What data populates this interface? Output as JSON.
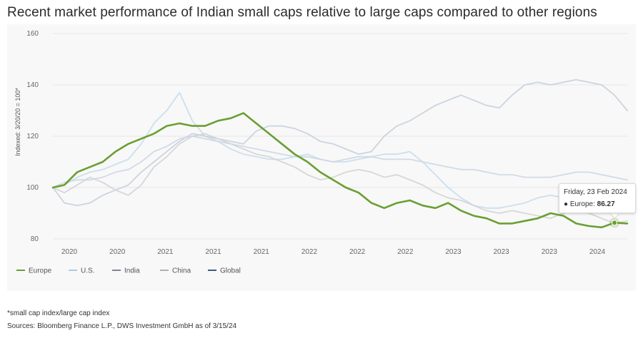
{
  "title": "Recent market performance of Indian small caps relative to large caps compared to other regions",
  "footnotes": [
    "*small cap index/large cap index",
    "Sources: Bloomberg Finance L.P., DWS Investment GmbH as of 3/15/24"
  ],
  "tooltip": {
    "date": "Friday, 23 Feb 2024",
    "series": "Europe",
    "value": "86.27",
    "bullet": "●"
  },
  "colors": {
    "europe": "#6a9f32",
    "us": "#c7dcec",
    "india": "#c6cfdb",
    "china": "#d3d3d3",
    "global": "#ccd6e6",
    "grid": "#e6e6e6",
    "axis_text": "#666666"
  },
  "chart_data": {
    "type": "line",
    "title": "Recent market performance of Indian small caps relative to large caps compared to other regions",
    "ylabel": "Indexed: 3/20/20 = 100*",
    "xlabel": "",
    "ylim": [
      80,
      160
    ],
    "yticks": [
      80,
      100,
      120,
      140,
      160
    ],
    "xlim": [
      2020.21,
      2024.7
    ],
    "xticks": [
      {
        "x": 2020.0,
        "label": "2020"
      },
      {
        "x": 2020.25,
        "label": "2020"
      },
      {
        "x": 2020.5,
        "label": "2021"
      },
      {
        "x": 2020.75,
        "label": "2021"
      },
      {
        "x": 2021.0,
        "label": "2021"
      },
      {
        "x": 2021.25,
        "label": "2022"
      },
      {
        "x": 2021.5,
        "label": "2022"
      },
      {
        "x": 2021.75,
        "label": "2022"
      },
      {
        "x": 2022.0,
        "label": "2023"
      },
      {
        "x": 2022.25,
        "label": "2023"
      },
      {
        "x": 2022.5,
        "label": "2023"
      },
      {
        "x": 2022.75,
        "label": "2024"
      }
    ],
    "legend_position": "bottom-left",
    "series": [
      {
        "name": "Europe",
        "key": "europe",
        "highlight": true,
        "x": [
          2020.21,
          2020.3,
          2020.4,
          2020.5,
          2020.6,
          2020.7,
          2020.8,
          2020.9,
          2021.0,
          2021.1,
          2021.2,
          2021.3,
          2021.4,
          2021.5,
          2021.6,
          2021.7,
          2021.8,
          2021.9,
          2022.0,
          2022.1,
          2022.2,
          2022.3,
          2022.4,
          2022.5,
          2022.6,
          2022.7,
          2022.8,
          2022.9,
          2023.0,
          2023.1,
          2023.2,
          2023.3,
          2023.4,
          2023.5,
          2023.6,
          2023.7,
          2023.8,
          2023.9,
          2024.0,
          2024.1,
          2024.2,
          2024.3,
          2024.4,
          2024.5,
          2024.6,
          2024.7
        ],
        "values": [
          100,
          101,
          106,
          108,
          110,
          114,
          117,
          119,
          121,
          124,
          125,
          124,
          124,
          126,
          127,
          129,
          125,
          121,
          117,
          113,
          110,
          106,
          103,
          100,
          98,
          94,
          92,
          94,
          95,
          93,
          92,
          94,
          91,
          89,
          88,
          86,
          86,
          87,
          88,
          90,
          89,
          86,
          85,
          84.5,
          86.3,
          86
        ]
      },
      {
        "name": "U.S.",
        "key": "us",
        "highlight": false,
        "x": [
          2020.21,
          2020.3,
          2020.4,
          2020.5,
          2020.6,
          2020.7,
          2020.8,
          2020.9,
          2021.0,
          2021.1,
          2021.2,
          2021.3,
          2021.4,
          2021.5,
          2021.6,
          2021.7,
          2021.8,
          2021.9,
          2022.0,
          2022.1,
          2022.2,
          2022.3,
          2022.4,
          2022.5,
          2022.6,
          2022.7,
          2022.8,
          2022.9,
          2023.0,
          2023.1,
          2023.2,
          2023.3,
          2023.4,
          2023.5,
          2023.6,
          2023.7,
          2023.8,
          2023.9,
          2024.0,
          2024.1,
          2024.2,
          2024.3,
          2024.4,
          2024.5,
          2024.6,
          2024.7
        ],
        "values": [
          100,
          101,
          104,
          106,
          107,
          109,
          111,
          117,
          125,
          130,
          137,
          126,
          120,
          118,
          115,
          113,
          112,
          111,
          111,
          112,
          113,
          111,
          110,
          110,
          111,
          112,
          113,
          113,
          114,
          110,
          105,
          100,
          96,
          93,
          92,
          92,
          93,
          94,
          96,
          97,
          96,
          95,
          94,
          92,
          91,
          91
        ]
      },
      {
        "name": "India",
        "key": "india",
        "highlight": false,
        "x": [
          2020.21,
          2020.3,
          2020.4,
          2020.5,
          2020.6,
          2020.7,
          2020.8,
          2020.9,
          2021.0,
          2021.1,
          2021.2,
          2021.3,
          2021.4,
          2021.5,
          2021.6,
          2021.7,
          2021.8,
          2021.9,
          2022.0,
          2022.1,
          2022.2,
          2022.3,
          2022.4,
          2022.5,
          2022.6,
          2022.7,
          2022.8,
          2022.9,
          2023.0,
          2023.1,
          2023.2,
          2023.3,
          2023.4,
          2023.5,
          2023.6,
          2023.7,
          2023.8,
          2023.9,
          2024.0,
          2024.1,
          2024.2,
          2024.3,
          2024.4,
          2024.5,
          2024.6,
          2024.7
        ],
        "values": [
          100,
          94,
          93,
          94,
          97,
          99,
          101,
          106,
          110,
          114,
          118,
          121,
          120,
          119,
          118,
          117,
          122,
          124,
          124,
          123,
          121,
          118,
          117,
          115,
          113,
          114,
          120,
          124,
          126,
          129,
          132,
          134,
          136,
          134,
          132,
          131,
          136,
          140,
          141,
          140,
          141,
          142,
          141,
          140,
          136,
          130
        ]
      },
      {
        "name": "China",
        "key": "china",
        "highlight": false,
        "x": [
          2020.21,
          2020.3,
          2020.4,
          2020.5,
          2020.6,
          2020.7,
          2020.8,
          2020.9,
          2021.0,
          2021.1,
          2021.2,
          2021.3,
          2021.4,
          2021.5,
          2021.6,
          2021.7,
          2021.8,
          2021.9,
          2022.0,
          2022.1,
          2022.2,
          2022.3,
          2022.4,
          2022.5,
          2022.6,
          2022.7,
          2022.8,
          2022.9,
          2023.0,
          2023.1,
          2023.2,
          2023.3,
          2023.4,
          2023.5,
          2023.6,
          2023.7,
          2023.8,
          2023.9,
          2024.0,
          2024.1,
          2024.2,
          2024.3,
          2024.4,
          2024.5,
          2024.6,
          2024.7
        ],
        "values": [
          100,
          98,
          101,
          104,
          102,
          99,
          97,
          101,
          108,
          112,
          117,
          120,
          121,
          119,
          117,
          115,
          113,
          112,
          110,
          108,
          105,
          103,
          104,
          106,
          107,
          106,
          104,
          105,
          103,
          101,
          98,
          96,
          95,
          93,
          91,
          90,
          91,
          90,
          89,
          88,
          90,
          91,
          90,
          88,
          86,
          87
        ]
      },
      {
        "name": "Global",
        "key": "global",
        "highlight": false,
        "x": [
          2020.21,
          2020.3,
          2020.4,
          2020.5,
          2020.6,
          2020.7,
          2020.8,
          2020.9,
          2021.0,
          2021.1,
          2021.2,
          2021.3,
          2021.4,
          2021.5,
          2021.6,
          2021.7,
          2021.8,
          2021.9,
          2022.0,
          2022.1,
          2022.2,
          2022.3,
          2022.4,
          2022.5,
          2022.6,
          2022.7,
          2022.8,
          2022.9,
          2023.0,
          2023.1,
          2023.2,
          2023.3,
          2023.4,
          2023.5,
          2023.6,
          2023.7,
          2023.8,
          2023.9,
          2024.0,
          2024.1,
          2024.2,
          2024.3,
          2024.4,
          2024.5,
          2024.6,
          2024.7
        ],
        "values": [
          100,
          102,
          103,
          103,
          104,
          106,
          107,
          110,
          114,
          116,
          119,
          120,
          119,
          118,
          117,
          116,
          115,
          114,
          113,
          112,
          112,
          111,
          110,
          111,
          112,
          112,
          111,
          111,
          111,
          110,
          109,
          108,
          107,
          107,
          106,
          105,
          105,
          104,
          104,
          104,
          105,
          106,
          106,
          105,
          104,
          103
        ]
      }
    ],
    "highlight_point": {
      "series": "Europe",
      "x": 2024.6,
      "y": 86.27,
      "label": "Friday, 23 Feb 2024"
    }
  }
}
